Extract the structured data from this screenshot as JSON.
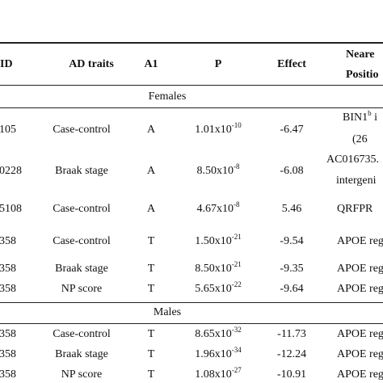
{
  "table": {
    "headers": {
      "id": "ID",
      "traits": "AD traits",
      "a1": "A1",
      "p": "P",
      "effect": "Effect",
      "nearest_line1": "Neare",
      "nearest_line2": "Positio"
    },
    "sections": [
      {
        "label": "Females",
        "rows": [
          {
            "id": "105",
            "trait": "Case-control",
            "a1": "A",
            "p_base": "1.01x10",
            "p_exp": "-10",
            "effect": "-6.47",
            "nearest1": "BIN1",
            "nearest1_sup": "b",
            "nearest1_tail": " i",
            "nearest2": "(26"
          },
          {
            "id": "0228",
            "trait": "Braak stage",
            "a1": "A",
            "p_base": "8.50x10",
            "p_exp": "-8",
            "effect": "-6.08",
            "nearest1": "AC016735.",
            "nearest2": "intergeni"
          },
          {
            "id": "5108",
            "trait": "Case-control",
            "a1": "A",
            "p_base": "4.67x10",
            "p_exp": "-8",
            "effect": "5.46",
            "nearest1": "QRFPR"
          },
          {
            "id": "358",
            "trait": "Case-control",
            "a1": "T",
            "p_base": "1.50x10",
            "p_exp": "-21",
            "effect": "-9.54",
            "nearest1": "APOE reg"
          },
          {
            "id": "358",
            "trait": "Braak stage",
            "a1": "T",
            "p_base": "8.50x10",
            "p_exp": "-21",
            "effect": "-9.35",
            "nearest1": "APOE reg"
          },
          {
            "id": "358",
            "trait": "NP score",
            "a1": "T",
            "p_base": "5.65x10",
            "p_exp": "-22",
            "effect": "-9.64",
            "nearest1": "APOE reg"
          }
        ]
      },
      {
        "label": "Males",
        "rows": [
          {
            "id": "358",
            "trait": "Case-control",
            "a1": "T",
            "p_base": "8.65x10",
            "p_exp": "-32",
            "effect": "-11.73",
            "nearest1": "APOE reg"
          },
          {
            "id": "358",
            "trait": "Braak stage",
            "a1": "T",
            "p_base": "1.96x10",
            "p_exp": "-34",
            "effect": "-12.24",
            "nearest1": "APOE reg"
          },
          {
            "id": "358",
            "trait": "NP score",
            "a1": "T",
            "p_base": "1.08x10",
            "p_exp": "-27",
            "effect": "-10.91",
            "nearest1": "APOE reg"
          }
        ]
      }
    ]
  }
}
